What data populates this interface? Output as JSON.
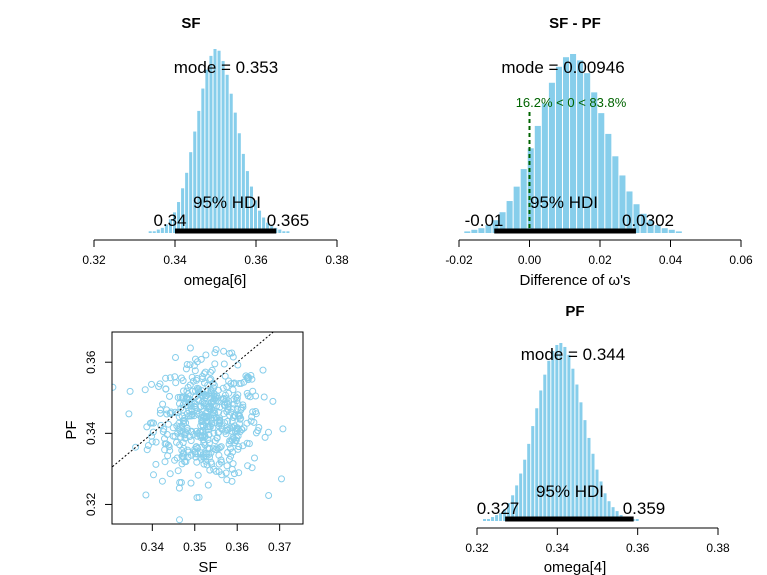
{
  "chart_data": [
    {
      "type": "histogram",
      "title": "SF",
      "xlabel": "omega[6]",
      "xlim": [
        0.32,
        0.38
      ],
      "xticks": [
        "0.32",
        "0.34",
        "0.36",
        "0.38"
      ],
      "mode_label": "mode = 0.353",
      "hdi_label": "95% HDI",
      "hdi_low": 0.34,
      "hdi_high": 0.365,
      "hdi_low_label": "0.34",
      "hdi_high_label": "0.365",
      "bar_color": "#87CEEB",
      "bin_start": 0.3335,
      "bin_width": 0.001,
      "values": [
        1,
        1,
        2,
        3,
        5,
        8,
        12,
        18,
        26,
        35,
        47,
        59,
        71,
        84,
        95,
        103,
        107,
        106,
        100,
        92,
        81,
        70,
        58,
        46,
        36,
        27,
        19,
        13,
        9,
        6,
        4,
        3,
        2,
        1,
        1
      ]
    },
    {
      "type": "histogram",
      "title": "SF - PF",
      "xlabel": "Difference of ω's",
      "xlim": [
        -0.02,
        0.06
      ],
      "xticks": [
        "-0.02",
        "0.00",
        "0.02",
        "0.04",
        "0.06"
      ],
      "mode_label": "mode = 0.00946",
      "hdi_label": "95% HDI",
      "hdi_low": -0.01,
      "hdi_high": 0.0302,
      "hdi_low_label": "-0.01",
      "hdi_high_label": "0.0302",
      "comparison_value": 0,
      "comparison_label": "16.2% < 0 < 83.8%",
      "comparison_color": "#006400",
      "bar_color": "#87CEEB",
      "bin_start": -0.0185,
      "bin_width": 0.002,
      "values": [
        1,
        2,
        3,
        5,
        8,
        13,
        20,
        29,
        40,
        53,
        67,
        81,
        94,
        104,
        110,
        112,
        108,
        100,
        88,
        75,
        62,
        48,
        36,
        26,
        18,
        12,
        8,
        5,
        3,
        2,
        1
      ]
    },
    {
      "type": "scatter",
      "xlabel": "SF",
      "ylabel": "PF",
      "xlim": [
        0.3305,
        0.3755
      ],
      "ylim": [
        0.3145,
        0.3685
      ],
      "xticks": [
        "0.34",
        "0.35",
        "0.36",
        "0.37"
      ],
      "yticks": [
        "0.32",
        "0.34",
        "0.36"
      ],
      "point_color": "#87CEEB",
      "diagonal_reference_line": true,
      "x_mean": 0.353,
      "x_sd": 0.0064,
      "y_mean": 0.3435,
      "y_sd": 0.0082,
      "n_points": 500
    },
    {
      "type": "histogram",
      "title": "PF",
      "xlabel": "omega[4]",
      "xlim": [
        0.32,
        0.38
      ],
      "xticks": [
        "0.32",
        "0.34",
        "0.36",
        "0.38"
      ],
      "mode_label": "mode = 0.344",
      "hdi_label": "95% HDI",
      "hdi_low": 0.327,
      "hdi_high": 0.359,
      "hdi_low_label": "0.327",
      "hdi_high_label": "0.359",
      "bar_color": "#87CEEB",
      "bin_start": 0.3215,
      "bin_width": 0.001,
      "values": [
        1,
        1,
        2,
        3,
        4,
        6,
        9,
        13,
        18,
        24,
        31,
        39,
        48,
        57,
        66,
        74,
        81,
        86,
        89,
        90,
        88,
        84,
        77,
        69,
        60,
        51,
        42,
        34,
        26,
        20,
        14,
        10,
        7,
        5,
        3,
        2,
        1,
        1,
        1
      ]
    }
  ]
}
